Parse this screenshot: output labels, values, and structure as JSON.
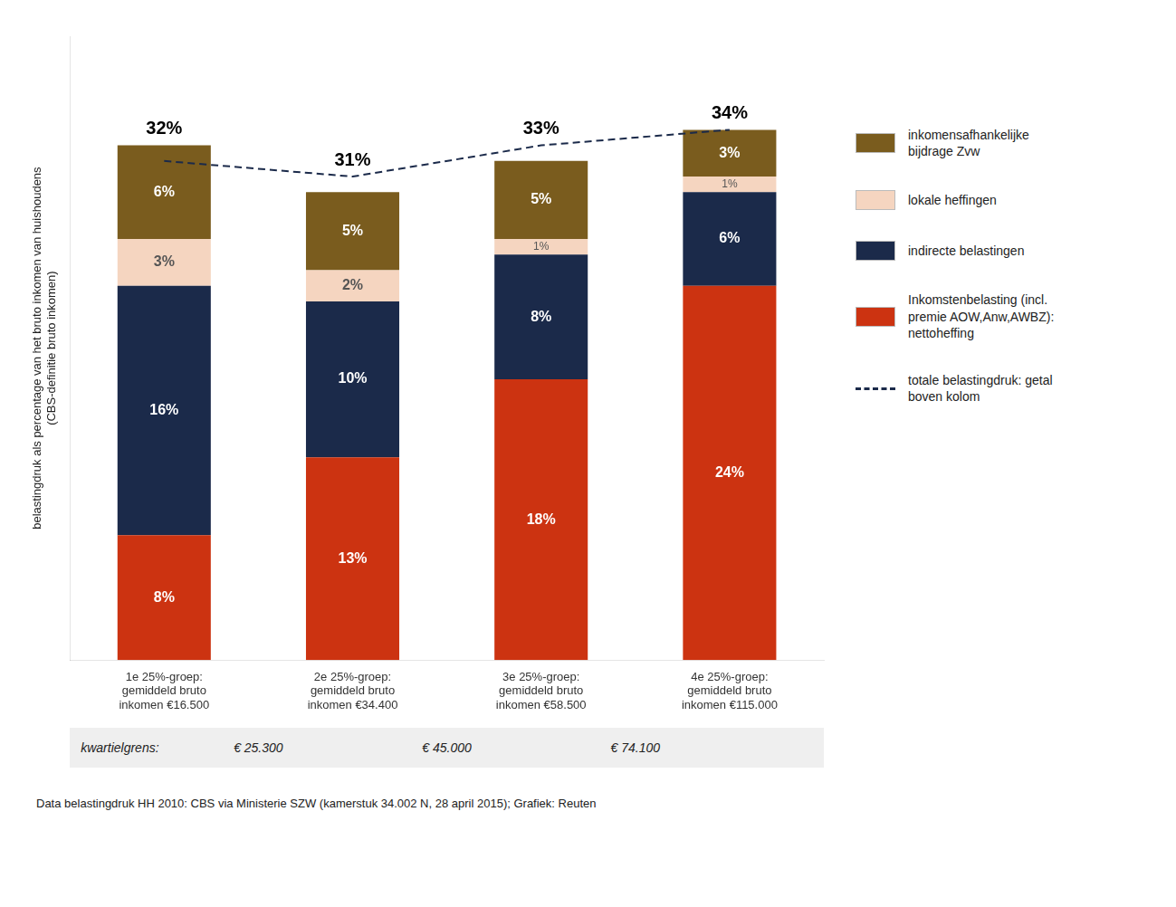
{
  "chart_data": {
    "type": "bar",
    "stacked": true,
    "categories": [
      "1e 25%-groep:\ngemiddeld bruto\ninkomen €16.500",
      "2e 25%-groep:\ngemiddeld bruto\ninkomen €34.400",
      "3e 25%-groep:\ngemiddeld bruto\ninkomen €58.500",
      "4e 25%-groep:\ngemiddeld bruto\ninkomen €115.000"
    ],
    "series": [
      {
        "name": "Inkomstenbelasting (incl.\npremie AOW,Anw,AWBZ):\nnettoheffing",
        "color": "#CC3311",
        "values": [
          8,
          13,
          18,
          24
        ],
        "value_labels": [
          "8%",
          "13%",
          "18%",
          "24%"
        ]
      },
      {
        "name": "indirecte belastingen",
        "color": "#1B2A4A",
        "values": [
          16,
          10,
          8,
          6
        ],
        "value_labels": [
          "16%",
          "10%",
          "8%",
          "6%"
        ]
      },
      {
        "name": "lokale heffingen",
        "color": "#F5D5C0",
        "values": [
          3,
          2,
          1,
          1
        ],
        "value_labels": [
          "3%",
          "2%",
          "1%",
          "1%"
        ]
      },
      {
        "name": "inkomensafhankelijke\nbijdrage Zvw",
        "color": "#7A5C1E",
        "values": [
          6,
          5,
          5,
          3
        ],
        "value_labels": [
          "6%",
          "5%",
          "5%",
          "3%"
        ]
      },
      {
        "name": "totale belastingdruk: getal\nboven kolom",
        "type": "line",
        "line_style": "dashed",
        "color": "#1B2A4A",
        "values": [
          32,
          31,
          33,
          34
        ],
        "value_labels": [
          "32%",
          "31%",
          "33%",
          "34%"
        ]
      }
    ],
    "ylabel": "belastingdruk als percentage van het bruto inkomen van huishoudens\n(CBS-definitie bruto inkomen)",
    "ylim": [
      0,
      40
    ],
    "grid": false,
    "legend": "right",
    "data_labels": true,
    "tick_labels": "x",
    "kwartielgrens_label": "kwartielgrens:",
    "kwartielgrens_values": [
      "€ 25.300",
      "€ 45.000",
      "€ 74.100"
    ],
    "footnote": "Data belastingdruk HH 2010: CBS via Ministerie SZW (kamerstuk 34.002 N, 28 april 2015); Grafiek: Reuten"
  }
}
